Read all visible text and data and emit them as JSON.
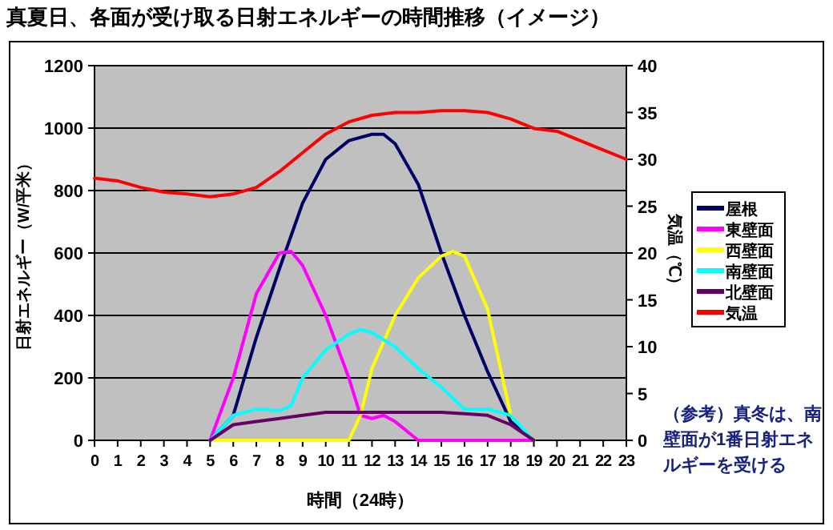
{
  "chart_data": {
    "type": "line",
    "title": "真夏日、各面が受け取る日射エネルギーの時間推移（イメージ）",
    "xlabel": "時間（24時）",
    "ylabel": "日射エネルギー（W/平米）",
    "y2label": "気温（℃）",
    "annotations": [
      "（参考）真冬は、南壁面が1番日射エネルギーを受ける"
    ],
    "xlim": [
      0,
      23
    ],
    "xticks": [
      0,
      1,
      2,
      3,
      4,
      5,
      6,
      7,
      8,
      9,
      10,
      11,
      12,
      13,
      14,
      15,
      16,
      17,
      18,
      19,
      20,
      21,
      22,
      23
    ],
    "ylim": [
      0,
      1200
    ],
    "yticks": [
      0,
      200,
      400,
      600,
      800,
      1000,
      1200
    ],
    "y2lim": [
      0,
      40
    ],
    "y2ticks": [
      0,
      5,
      10,
      15,
      20,
      25,
      30,
      35,
      40
    ],
    "grid": "y",
    "legend": "right",
    "marker": "none",
    "line_style": "solid",
    "series": [
      {
        "name": "屋根",
        "color": "#000066",
        "x": [
          5,
          6,
          7,
          8,
          9,
          10,
          11,
          12,
          12.5,
          13,
          14,
          15,
          16,
          17,
          18,
          19
        ],
        "values": [
          0,
          80,
          330,
          550,
          760,
          900,
          960,
          980,
          980,
          950,
          820,
          600,
          400,
          220,
          60,
          0
        ]
      },
      {
        "name": "東壁面",
        "color": "#ff00ff",
        "x": [
          5,
          6,
          7,
          8,
          8.5,
          9,
          10,
          11,
          11.5,
          12,
          12.5,
          13,
          14,
          15,
          16,
          17,
          18,
          19
        ],
        "values": [
          0,
          200,
          470,
          600,
          605,
          560,
          400,
          200,
          80,
          70,
          80,
          60,
          0,
          0,
          0,
          0,
          0,
          0
        ]
      },
      {
        "name": "西壁面",
        "color": "#ffff00",
        "x": [
          5,
          6,
          7,
          8,
          9,
          10,
          11,
          11.5,
          12,
          13,
          14,
          15,
          15.5,
          16,
          17,
          18,
          19
        ],
        "values": [
          0,
          0,
          0,
          0,
          0,
          0,
          0,
          80,
          230,
          400,
          520,
          590,
          605,
          590,
          420,
          80,
          0
        ]
      },
      {
        "name": "南壁面",
        "color": "#00ffff",
        "x": [
          5,
          6,
          7,
          8,
          8.5,
          9,
          10,
          11,
          11.5,
          12,
          13,
          14,
          15,
          16,
          17,
          18,
          19
        ],
        "values": [
          0,
          80,
          100,
          95,
          110,
          200,
          290,
          340,
          355,
          345,
          300,
          230,
          170,
          100,
          100,
          80,
          0
        ]
      },
      {
        "name": "北壁面",
        "color": "#660066",
        "x": [
          5,
          6,
          7,
          8,
          9,
          10,
          11,
          12,
          13,
          14,
          15,
          16,
          17,
          18,
          19
        ],
        "values": [
          0,
          50,
          60,
          70,
          80,
          90,
          90,
          90,
          90,
          90,
          90,
          85,
          80,
          50,
          0
        ]
      },
      {
        "name": "気温",
        "color": "#ff0000",
        "axis": "y2",
        "x": [
          0,
          1,
          2,
          3,
          4,
          5,
          6,
          7,
          8,
          9,
          10,
          11,
          12,
          13,
          14,
          15,
          16,
          17,
          18,
          19,
          20,
          21,
          22,
          23
        ],
        "values": [
          28,
          27.7,
          27,
          26.5,
          26.3,
          26,
          26.3,
          27,
          28.7,
          30.7,
          32.7,
          34,
          34.7,
          35,
          35,
          35.2,
          35.2,
          35,
          34.3,
          33.3,
          33,
          32,
          31,
          30
        ]
      }
    ]
  }
}
